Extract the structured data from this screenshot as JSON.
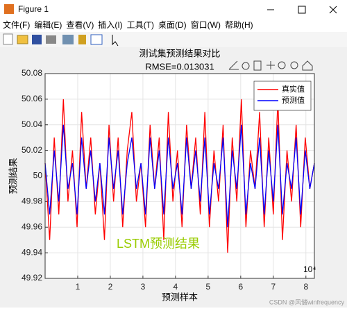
{
  "window": {
    "title": "Figure 1",
    "menu": [
      "文件(F)",
      "编辑(E)",
      "查看(V)",
      "插入(I)",
      "工具(T)",
      "桌面(D)",
      "窗口(W)",
      "帮助(H)"
    ]
  },
  "chart_data": {
    "type": "line",
    "title": "测试集预测结果对比",
    "subtitle": "RMSE=0.013031",
    "x_label": "预测样本",
    "y_label": "预测结果",
    "x_exponent": "10⁴",
    "annotation": "LSTM预测结果",
    "x": [
      0,
      1400,
      2800,
      4200,
      5600,
      7000,
      8400,
      9800,
      11200,
      12600,
      14000,
      15400,
      16800,
      18200,
      19600,
      21000,
      22400,
      23800,
      25200,
      26600,
      28000,
      29400,
      30800,
      32200,
      33600,
      35000,
      36400,
      37800,
      39200,
      40600,
      42000,
      43400,
      44800,
      46200,
      47600,
      49000,
      50400,
      51800,
      53200,
      54600,
      56000,
      57400,
      58800,
      60200,
      61600,
      63000,
      64400,
      65800,
      67200,
      68600,
      70000,
      71400,
      72800,
      74200,
      75600,
      77000,
      78400,
      79800,
      81200,
      82600
    ],
    "series": [
      {
        "name": "真实值",
        "color": "#ff0000",
        "values": [
          50.01,
          49.95,
          50.03,
          49.97,
          50.06,
          49.98,
          50.02,
          49.96,
          50.05,
          49.99,
          50.03,
          49.97,
          50.01,
          49.95,
          50.04,
          49.98,
          50.03,
          49.96,
          50.02,
          50.05,
          49.98,
          50.01,
          49.96,
          50.04,
          49.99,
          50.03,
          49.95,
          50.05,
          49.98,
          50.02,
          49.96,
          50.04,
          49.99,
          50.03,
          49.97,
          50.05,
          49.96,
          50.02,
          49.98,
          50.04,
          49.94,
          50.03,
          49.98,
          50.06,
          49.96,
          50.02,
          49.99,
          50.05,
          49.96,
          50.03,
          49.97,
          50.06,
          49.95,
          50.02,
          49.98,
          50.04,
          49.96,
          50.03,
          49.99,
          50.01
        ]
      },
      {
        "name": "预测值",
        "color": "#0000ff",
        "values": [
          50.01,
          49.97,
          50.02,
          49.98,
          50.04,
          49.99,
          50.01,
          49.97,
          50.03,
          49.99,
          50.02,
          49.98,
          50.01,
          49.97,
          50.03,
          49.99,
          50.02,
          49.97,
          50.01,
          50.03,
          49.99,
          50.01,
          49.97,
          50.03,
          49.99,
          50.02,
          49.97,
          50.03,
          49.99,
          50.01,
          49.97,
          50.03,
          49.99,
          50.02,
          49.98,
          50.03,
          49.97,
          50.01,
          49.99,
          50.03,
          49.96,
          50.02,
          49.99,
          50.04,
          49.97,
          50.01,
          49.99,
          50.03,
          49.97,
          50.02,
          49.98,
          50.04,
          49.97,
          50.01,
          49.99,
          50.03,
          49.97,
          50.02,
          49.99,
          50.01
        ]
      }
    ],
    "xlim": [
      0,
      82600
    ],
    "xticks": [
      {
        "value": 10000,
        "label": "1"
      },
      {
        "value": 20000,
        "label": "2"
      },
      {
        "value": 30000,
        "label": "3"
      },
      {
        "value": 40000,
        "label": "4"
      },
      {
        "value": 50000,
        "label": "5"
      },
      {
        "value": 60000,
        "label": "6"
      },
      {
        "value": 70000,
        "label": "7"
      },
      {
        "value": 80000,
        "label": "8"
      }
    ],
    "ylim": [
      49.92,
      50.08
    ],
    "yticks": [
      49.92,
      49.94,
      49.96,
      49.98,
      50,
      50.02,
      50.04,
      50.06,
      50.08
    ],
    "grid": true,
    "legend": "upper right"
  },
  "watermark": "CSDN @风储winfrequency"
}
